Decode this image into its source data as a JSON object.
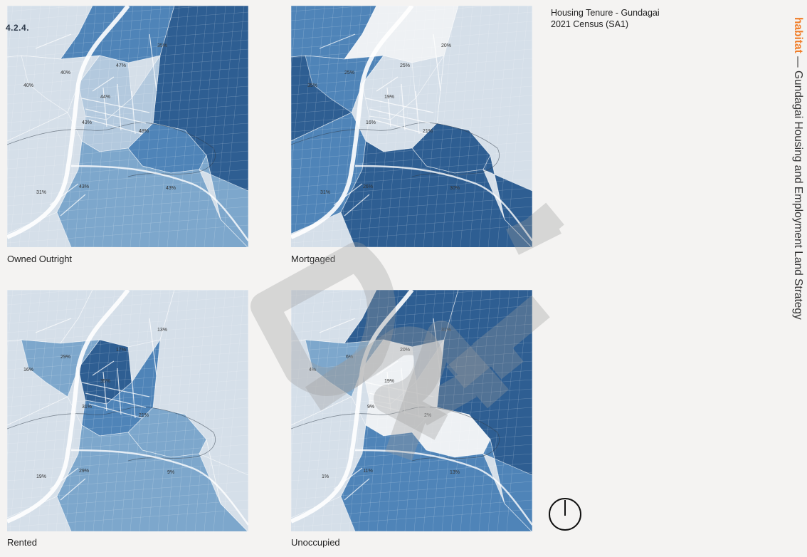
{
  "section_number": "4.2.4.",
  "title": {
    "line1": "Housing Tenure - Gundagai",
    "line2": "2021 Census (SA1)"
  },
  "side_label": {
    "brand": "habitat",
    "separator": " — ",
    "text": "Gundagai Housing and Employment Land Strategy"
  },
  "colors": {
    "brand": "#f07e2a",
    "ramp": [
      "#eef1f4",
      "#d5dfe9",
      "#b3c9de",
      "#7da7cc",
      "#4f84b8",
      "#2e5e92"
    ]
  },
  "icons": {
    "north": "north-arrow-icon"
  },
  "watermark": "DRAFT",
  "maps": [
    {
      "caption": "Owned Outright",
      "zones": {
        "nw": 1,
        "north": 4,
        "ne": 5,
        "west": 1,
        "core": 2,
        "center": 2,
        "east": 4,
        "sw": 1,
        "south": 3,
        "se": 3,
        "farw": 1
      },
      "labels": [
        "35%",
        "47%",
        "40%",
        "44%",
        "40%",
        "43%",
        "48%",
        "43%",
        "43%",
        "31%"
      ]
    },
    {
      "caption": "Mortgaged",
      "zones": {
        "nw": 4,
        "north": 0,
        "ne": 1,
        "west": 4,
        "core": 1,
        "center": 1,
        "east": 5,
        "sw": 4,
        "south": 5,
        "se": 5,
        "farw": 5
      },
      "labels": [
        "20%",
        "25%",
        "25%",
        "19%",
        "35%",
        "16%",
        "21%",
        "26%",
        "30%",
        "31%"
      ]
    },
    {
      "caption": "Rented",
      "zones": {
        "nw": 1,
        "north": 1,
        "ne": 1,
        "west": 3,
        "core": 5,
        "center": 4,
        "east": 3,
        "sw": 1,
        "south": 3,
        "se": 1,
        "farw": 1
      },
      "labels": [
        "13%",
        "17%",
        "29%",
        "35%",
        "16%",
        "31%",
        "21%",
        "29%",
        "9%",
        "19%"
      ]
    },
    {
      "caption": "Unoccupied",
      "zones": {
        "nw": 1,
        "north": 5,
        "ne": 5,
        "west": 3,
        "core": 0,
        "center": 0,
        "east": 0,
        "sw": 1,
        "south": 4,
        "se": 4,
        "farw": 1
      },
      "labels": [
        "31%",
        "20%",
        "6%",
        "19%",
        "4%",
        "9%",
        "2%",
        "11%",
        "13%",
        "1%"
      ]
    }
  ]
}
